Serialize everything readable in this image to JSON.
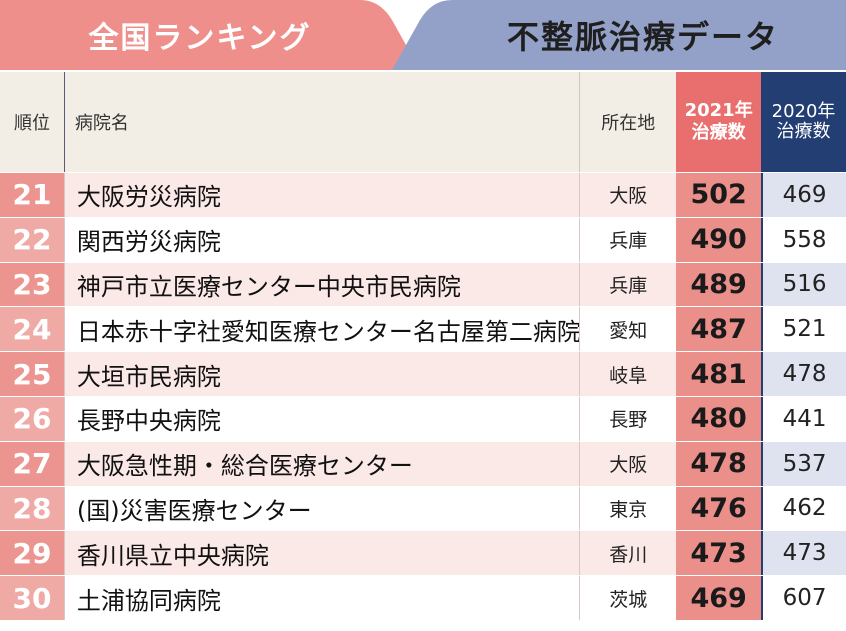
{
  "banner": {
    "left_title": "全国ランキング",
    "right_title": "不整脈治療データ",
    "left_color": "#ef8f8b",
    "right_color": "#93a0c8"
  },
  "header": {
    "rank": "順位",
    "hospital": "病院名",
    "location": "所在地",
    "y2021_line1": "2021年",
    "y2021_line2": "治療数",
    "y2020_line1": "2020年",
    "y2020_line2": "治療数"
  },
  "rows": [
    {
      "rank": "21",
      "hospital": "大阪労災病院",
      "location": "大阪",
      "y2021": "502",
      "y2020": "469"
    },
    {
      "rank": "22",
      "hospital": "関西労災病院",
      "location": "兵庫",
      "y2021": "490",
      "y2020": "558"
    },
    {
      "rank": "23",
      "hospital": "神戸市立医療センター中央市民病院",
      "location": "兵庫",
      "y2021": "489",
      "y2020": "516"
    },
    {
      "rank": "24",
      "hospital": "日本赤十字社愛知医療センター名古屋第二病院",
      "location": "愛知",
      "y2021": "487",
      "y2020": "521"
    },
    {
      "rank": "25",
      "hospital": "大垣市民病院",
      "location": "岐阜",
      "y2021": "481",
      "y2020": "478"
    },
    {
      "rank": "26",
      "hospital": "長野中央病院",
      "location": "長野",
      "y2021": "480",
      "y2020": "441"
    },
    {
      "rank": "27",
      "hospital": "大阪急性期・総合医療センター",
      "location": "大阪",
      "y2021": "478",
      "y2020": "537"
    },
    {
      "rank": "28",
      "hospital": "(国)災害医療センター",
      "location": "東京",
      "y2021": "476",
      "y2020": "462"
    },
    {
      "rank": "29",
      "hospital": "香川県立中央病院",
      "location": "香川",
      "y2021": "473",
      "y2020": "473"
    },
    {
      "rank": "30",
      "hospital": "土浦協同病院",
      "location": "茨城",
      "y2021": "469",
      "y2020": "607"
    }
  ]
}
